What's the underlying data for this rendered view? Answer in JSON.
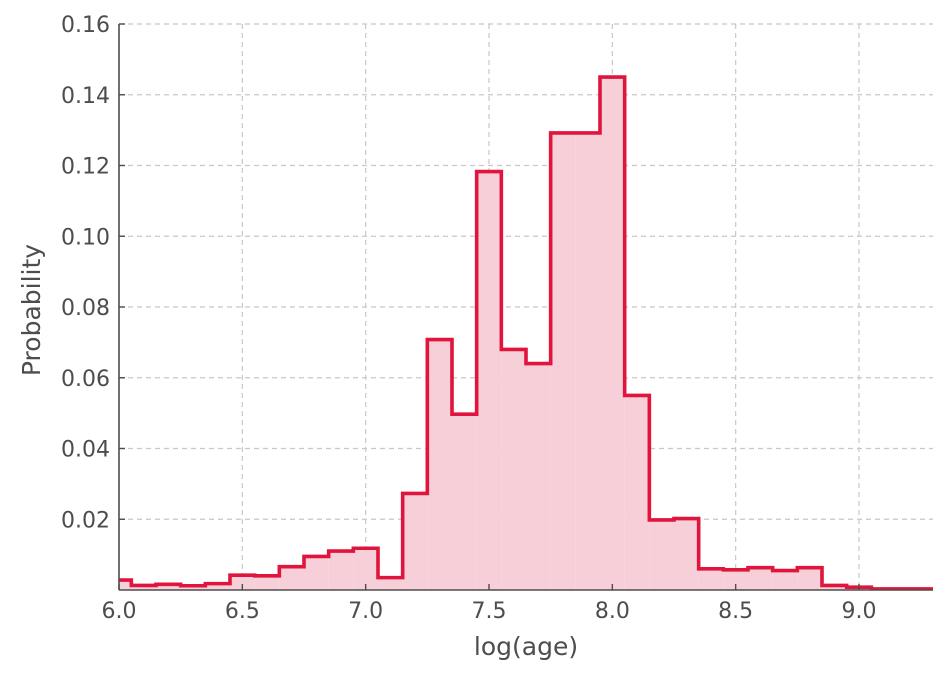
{
  "chart_data": {
    "type": "histogram",
    "title": "",
    "xlabel": "log(age)",
    "ylabel": "Probability",
    "xlim": [
      6.0,
      9.3
    ],
    "ylim": [
      0.0,
      0.16
    ],
    "x_ticks": [
      6.0,
      6.5,
      7.0,
      7.5,
      8.0,
      8.5,
      9.0
    ],
    "x_tick_labels": [
      "6.0",
      "6.5",
      "7.0",
      "7.5",
      "8.0",
      "8.5",
      "9.0"
    ],
    "y_ticks": [
      0.02,
      0.04,
      0.06,
      0.08,
      0.1,
      0.12,
      0.14,
      0.16
    ],
    "y_tick_labels": [
      "0.02",
      "0.04",
      "0.06",
      "0.08",
      "0.10",
      "0.12",
      "0.14",
      "0.16"
    ],
    "grid": true,
    "bin_width": 0.1,
    "bin_edges": [
      5.95,
      6.05,
      6.15,
      6.25,
      6.35,
      6.45,
      6.55,
      6.65,
      6.75,
      6.85,
      6.95,
      7.05,
      7.15,
      7.25,
      7.35,
      7.45,
      7.55,
      7.65,
      7.75,
      7.85,
      7.95,
      8.05,
      8.15,
      8.25,
      8.35,
      8.45,
      8.55,
      8.65,
      8.75,
      8.85,
      8.95,
      9.05,
      9.15,
      9.25,
      9.35
    ],
    "values": [
      0.0028,
      0.0013,
      0.0016,
      0.0012,
      0.0018,
      0.0042,
      0.004,
      0.0066,
      0.0095,
      0.011,
      0.0118,
      0.0035,
      0.0273,
      0.0708,
      0.0497,
      0.1183,
      0.068,
      0.064,
      0.1292,
      0.1292,
      0.145,
      0.055,
      0.0198,
      0.0202,
      0.006,
      0.0057,
      0.0063,
      0.0055,
      0.0063,
      0.0013,
      0.0008,
      0.0003,
      0.0003,
      0.0003
    ],
    "line_color": "#e0143c",
    "fill_color": "#f7cfd8",
    "axis_color": "#4d4d4d",
    "grid_color": "#c8c8c8"
  }
}
